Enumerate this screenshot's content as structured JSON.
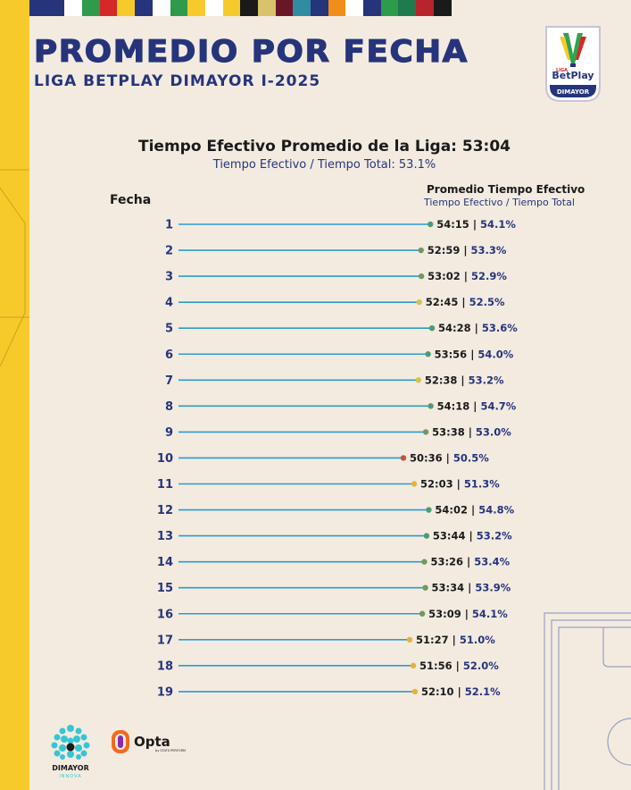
{
  "header": {
    "title": "PROMEDIO POR FECHA",
    "subtitle": "LIGA BETPLAY DIMAYOR I-2025",
    "stripe_colors": [
      "#26347c",
      "#26347c",
      "#ffffff",
      "#2e9a4b",
      "#d62828",
      "#f7ca2b",
      "#26347c",
      "#ffffff",
      "#2e9a4b",
      "#f7ca2b",
      "#ffffff",
      "#f7ca2b",
      "#1a1a1a",
      "#d9c36a",
      "#6b1628",
      "#2f8ca3",
      "#26347c",
      "#f28c1b",
      "#ffffff",
      "#26347c",
      "#2e9a4b",
      "#1f7a4f",
      "#b8242b",
      "#1a1a1a"
    ]
  },
  "badge": {
    "brand_small": "LIGA",
    "brand": "BetPlay",
    "name": "DIMAYOR"
  },
  "summary": {
    "headline": "Tiempo Efectivo Promedio de la Liga: 53:04",
    "ratio_line": "Tiempo Efectivo / Tiempo Total: 53.1%"
  },
  "columns": {
    "fecha": "Fecha",
    "metric": "Promedio Tiempo Efectivo",
    "metric_sub": "Tiempo Efectivo / Tiempo Total"
  },
  "chart_data": {
    "type": "lollipop",
    "orientation": "horizontal",
    "xlabel": "Promedio Tiempo Efectivo",
    "ylabel": "Fecha",
    "categories": [
      "1",
      "2",
      "3",
      "4",
      "5",
      "6",
      "7",
      "8",
      "9",
      "10",
      "11",
      "12",
      "13",
      "14",
      "15",
      "16",
      "17",
      "18",
      "19"
    ],
    "times": [
      "54:15",
      "52:59",
      "53:02",
      "52:45",
      "54:28",
      "53:56",
      "52:38",
      "54:18",
      "53:38",
      "50:36",
      "52:03",
      "54:02",
      "53:44",
      "53:26",
      "53:34",
      "53:09",
      "51:27",
      "51:56",
      "52:10"
    ],
    "values_seconds": [
      3255,
      3179,
      3182,
      3165,
      3268,
      3236,
      3158,
      3258,
      3218,
      3036,
      3123,
      3242,
      3224,
      3206,
      3214,
      3189,
      3087,
      3116,
      3130
    ],
    "ratios": [
      "54.1%",
      "53.3%",
      "52.9%",
      "52.5%",
      "53.6%",
      "54.0%",
      "53.2%",
      "54.7%",
      "53.0%",
      "50.5%",
      "51.3%",
      "54.8%",
      "53.2%",
      "53.4%",
      "53.9%",
      "54.1%",
      "51.0%",
      "52.0%",
      "52.1%"
    ],
    "dot_colors": [
      "#4f9a74",
      "#6e9a5f",
      "#6e9a5f",
      "#d9c24a",
      "#4f9a74",
      "#4f9a74",
      "#d9c24a",
      "#4f9a74",
      "#6e9a5f",
      "#c0583a",
      "#e8b23a",
      "#4f9a74",
      "#4f9a74",
      "#6e9a5f",
      "#6e9a5f",
      "#6e9a5f",
      "#e8b23a",
      "#e8b23a",
      "#e8b23a"
    ],
    "line_color": "#2b9bd0",
    "label_color": "#26347c"
  },
  "footer": {
    "dimayor_label": "DIMAYOR",
    "dimayor_sub": "INNOVA",
    "opta_label": "Opta",
    "opta_sub": "by STATS PERFORM"
  }
}
